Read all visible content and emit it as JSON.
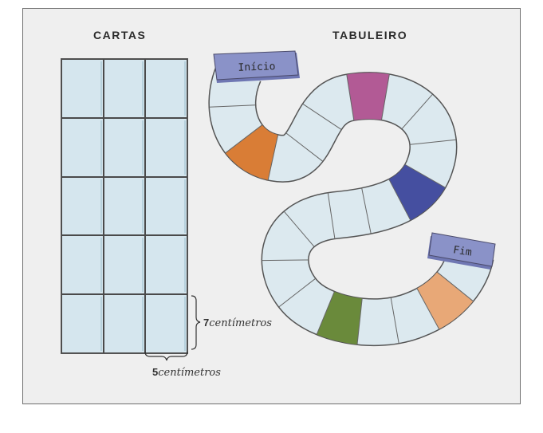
{
  "cards": {
    "title": "CARTAS",
    "rows": 5,
    "columns": 3,
    "height_label_number": "7",
    "height_label_unit": "centímetros",
    "width_label_number": "5",
    "width_label_unit": "centímetros"
  },
  "board": {
    "title": "TABULEIRO",
    "start_label": "Início",
    "end_label": "Fim"
  },
  "colors": {
    "card_fill": "#d5e6ee",
    "space_fill": "#dce9ef",
    "orange": "#d97d36",
    "magenta": "#b25a95",
    "navy": "#454fa0",
    "green": "#6a8a3b",
    "peach": "#e8a877",
    "tag_fill": "#8a92c8"
  }
}
